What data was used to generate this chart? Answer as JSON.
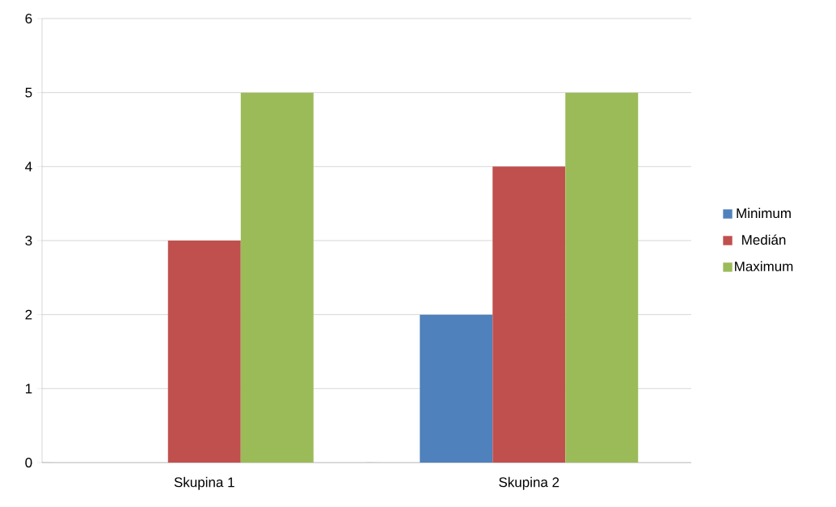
{
  "chart_data": {
    "type": "bar",
    "categories": [
      "Skupina 1",
      "Skupina 2"
    ],
    "series": [
      {
        "name": "Minimum",
        "color": "#4f81bd",
        "values": [
          0,
          2
        ]
      },
      {
        "name": "Medián",
        "color": "#c0504d",
        "values": [
          3,
          4
        ]
      },
      {
        "name": "Maximum",
        "color": "#9bbb59",
        "values": [
          5,
          5
        ]
      }
    ],
    "ylim": [
      0,
      6
    ],
    "yticks": [
      0,
      1,
      2,
      3,
      4,
      5,
      6
    ],
    "grid": "y",
    "legend": "right"
  }
}
